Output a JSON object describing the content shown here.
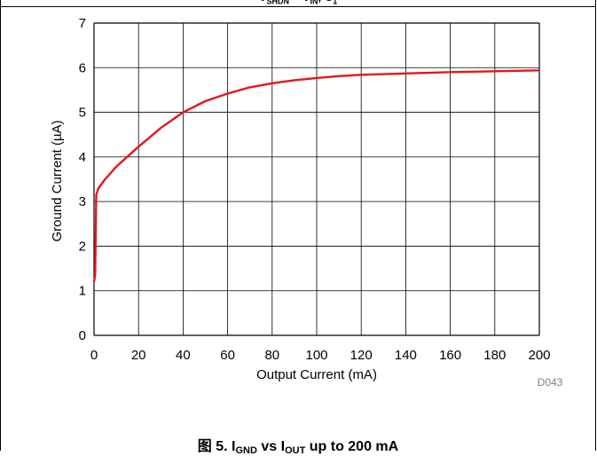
{
  "header": {
    "caption_segments": [
      {
        "text": "V",
        "sub": "SHDN"
      },
      {
        "text": " = V",
        "sub": "IN"
      },
      {
        "text": ", C",
        "sub": "1"
      }
    ]
  },
  "figure": {
    "caption_prefix": "图 5. I",
    "caption_sub1": "GND",
    "caption_mid": " vs I",
    "caption_sub2": "OUT",
    "caption_suffix": " up to 200 mA",
    "code": "D043"
  },
  "colors": {
    "curve": "#e8141c",
    "grid": "#000000",
    "code": "#7f7f7f"
  },
  "chart_data": {
    "type": "line",
    "title": "",
    "xlabel": "Output Current (mA)",
    "ylabel": "Ground Current (µA)",
    "xlim": [
      0,
      200
    ],
    "ylim": [
      0,
      7
    ],
    "xticks": [
      0,
      20,
      40,
      60,
      80,
      100,
      120,
      140,
      160,
      180,
      200
    ],
    "yticks": [
      0,
      1,
      2,
      3,
      4,
      5,
      6,
      7
    ],
    "grid": true,
    "series": [
      {
        "color": "#e8141c",
        "x": [
          0,
          0.5,
          1,
          2,
          5,
          10,
          20,
          30,
          40,
          50,
          60,
          70,
          80,
          90,
          100,
          110,
          120,
          140,
          160,
          180,
          200
        ],
        "y": [
          1.2,
          1.35,
          3.15,
          3.3,
          3.5,
          3.78,
          4.23,
          4.65,
          5.0,
          5.25,
          5.42,
          5.56,
          5.65,
          5.72,
          5.77,
          5.81,
          5.84,
          5.87,
          5.9,
          5.92,
          5.94
        ]
      }
    ]
  }
}
